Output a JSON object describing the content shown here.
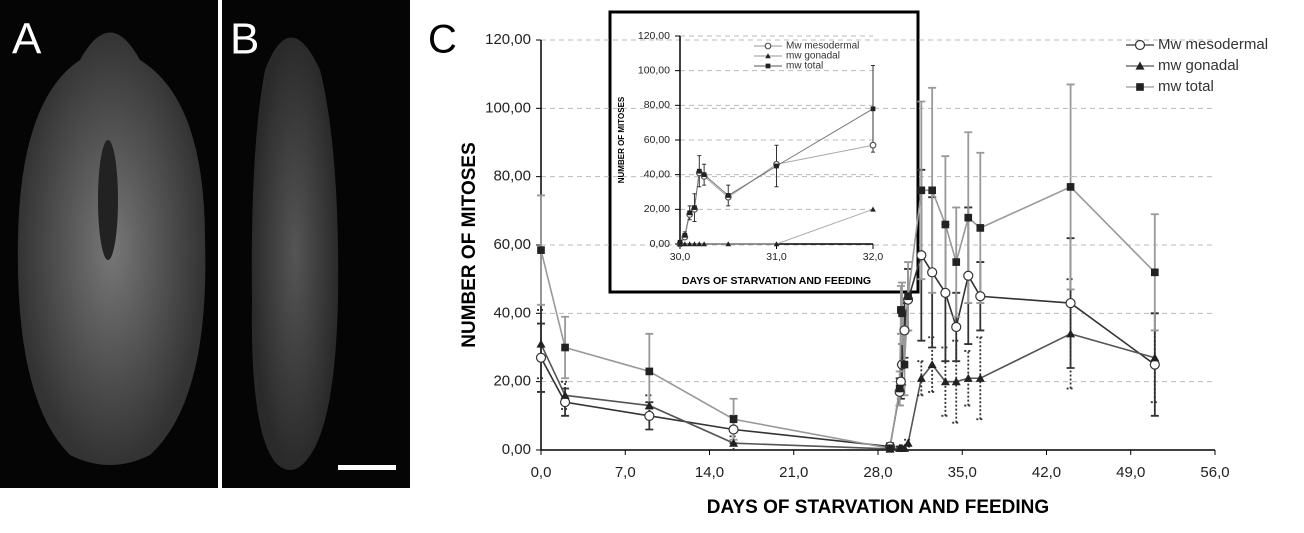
{
  "panels": {
    "a": "A",
    "b": "B"
  },
  "chart_data": [
    {
      "type": "line",
      "panel_label": "C",
      "xlabel": "DAYS OF STARVATION AND FEEDING",
      "ylabel": "NUMBER OF MITOSES",
      "xlim": [
        0,
        56
      ],
      "ylim": [
        0,
        120
      ],
      "grid": true,
      "legend": "top-right",
      "xticks": [
        {
          "value": 0,
          "label": "0,0"
        },
        {
          "value": 7,
          "label": "7,0"
        },
        {
          "value": 14,
          "label": "14,0"
        },
        {
          "value": 21,
          "label": "21,0"
        },
        {
          "value": 28,
          "label": "28,0"
        },
        {
          "value": 35,
          "label": "35,0"
        },
        {
          "value": 42,
          "label": "42,0"
        },
        {
          "value": 49,
          "label": "49,0"
        },
        {
          "value": 56,
          "label": "56,0"
        }
      ],
      "yticks": [
        {
          "value": 0,
          "label": "0,00"
        },
        {
          "value": 20,
          "label": "20,00"
        },
        {
          "value": 40,
          "label": "40,00"
        },
        {
          "value": 60,
          "label": "60,00"
        },
        {
          "value": 80,
          "label": "80,00"
        },
        {
          "value": 100,
          "label": "100,00"
        },
        {
          "value": 120,
          "label": "120,00"
        }
      ],
      "x": [
        0,
        2,
        9,
        16,
        29,
        29.8,
        29.9,
        30,
        30.2,
        30.5,
        31.6,
        32.5,
        33.6,
        34.5,
        35.5,
        36.5,
        44,
        51
      ],
      "series": [
        {
          "name": "Mw mesodermal",
          "color": "#333333",
          "marker": "circle",
          "values": [
            27,
            14,
            10,
            6,
            1,
            17,
            20,
            25,
            35,
            44,
            57,
            52,
            46,
            36,
            51,
            45,
            43,
            25
          ],
          "errors": [
            10,
            4,
            4,
            4,
            1,
            4,
            5,
            6,
            8,
            9,
            25,
            22,
            20,
            10,
            20,
            10,
            19,
            15
          ]
        },
        {
          "name": "mw gonadal",
          "color": "#555555",
          "marker": "triangle",
          "values": [
            31,
            16,
            13,
            2,
            0.3,
            0.5,
            0.5,
            0.5,
            0.5,
            2,
            21,
            25,
            20,
            20,
            21,
            21,
            34,
            27
          ],
          "errors": [
            10,
            4,
            3,
            2,
            0.5,
            0.5,
            0.5,
            0.5,
            0.5,
            1,
            5,
            8,
            10,
            12,
            8,
            12,
            16,
            13
          ]
        },
        {
          "name": "mw total",
          "color": "#999999",
          "marker": "square",
          "values": [
            58.5,
            30,
            23,
            9,
            0.5,
            18,
            41,
            40,
            25,
            45,
            76,
            76,
            66,
            55,
            68,
            65,
            77,
            52
          ],
          "errors": [
            16,
            9,
            11,
            6,
            1,
            5,
            7,
            9,
            9,
            10,
            26,
            30,
            20,
            16,
            25,
            22,
            30,
            17
          ]
        }
      ]
    },
    {
      "type": "line",
      "xlabel": "DAYS OF STARVATION AND FEEDING",
      "ylabel": "NUMBER OF MITOSES",
      "xlim": [
        30,
        32
      ],
      "ylim": [
        0,
        120
      ],
      "grid": true,
      "legend": "top-right",
      "xticks": [
        {
          "value": 30,
          "label": "30,0"
        },
        {
          "value": 31,
          "label": "31,0"
        },
        {
          "value": 32,
          "label": "32,0"
        }
      ],
      "yticks": [
        {
          "value": 0,
          "label": "0,00"
        },
        {
          "value": 20,
          "label": "20,00"
        },
        {
          "value": 40,
          "label": "40,00"
        },
        {
          "value": 60,
          "label": "60,00"
        },
        {
          "value": 80,
          "label": "80,00"
        },
        {
          "value": 100,
          "label": "100,00"
        },
        {
          "value": 120,
          "label": "120,00"
        }
      ],
      "x": [
        30,
        30.05,
        30.1,
        30.15,
        30.2,
        30.25,
        30.5,
        31,
        32
      ],
      "series": [
        {
          "name": "Mw mesodermal",
          "color": "#aaaaaa",
          "marker": "circle",
          "values": [
            0,
            4,
            17,
            20,
            41,
            39,
            27,
            46,
            57
          ]
        },
        {
          "name": "mw gonadal",
          "color": "#aaaaaa",
          "marker": "triangle",
          "values": [
            0,
            0,
            0,
            0,
            0,
            0,
            0,
            0,
            20
          ]
        },
        {
          "name": "mw total",
          "color": "#777777",
          "marker": "square",
          "values": [
            1,
            5,
            18,
            21,
            42,
            40,
            28,
            45,
            78
          ],
          "errors": [
            1,
            2,
            4,
            8,
            9,
            6,
            6,
            12,
            25
          ]
        }
      ]
    }
  ]
}
